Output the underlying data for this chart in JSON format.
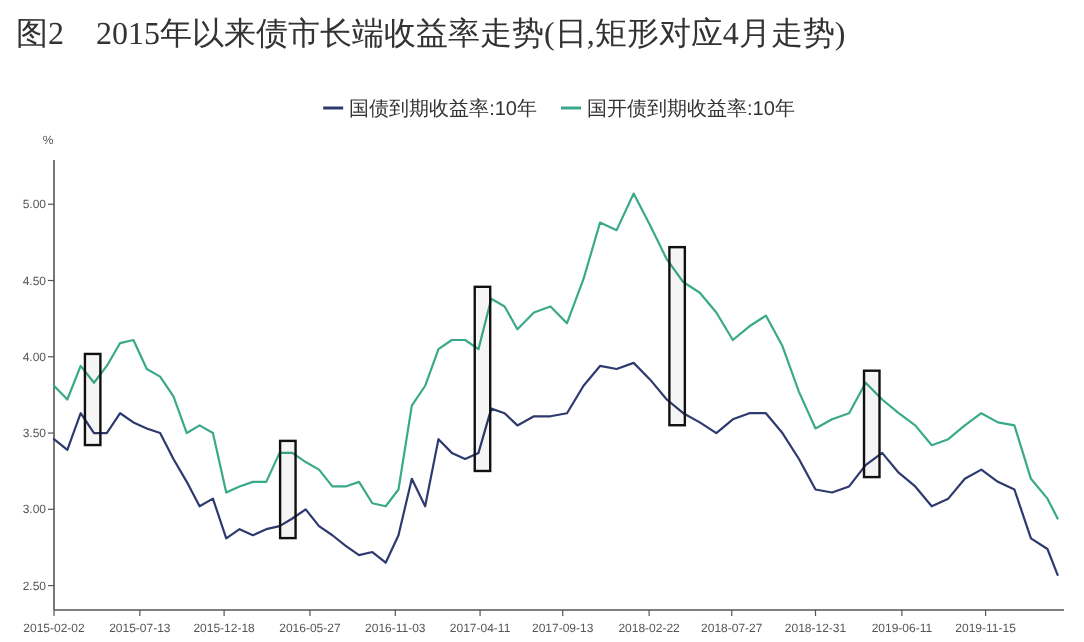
{
  "chart_data": {
    "type": "line",
    "title": "图2　2015年以来债市长端收益率走势(日,矩形对应4月走势)",
    "ylabel": "%",
    "x": [
      "2015-02-02",
      "2015-02-27",
      "2015-03-24",
      "2015-04-18",
      "2015-05-12",
      "2015-06-06",
      "2015-07-01",
      "2015-07-26",
      "2015-08-20",
      "2015-09-14",
      "2015-10-09",
      "2015-11-02",
      "2015-11-27",
      "2015-12-22",
      "2016-01-16",
      "2016-02-10",
      "2016-03-06",
      "2016-03-31",
      "2016-04-24",
      "2016-05-19",
      "2016-06-13",
      "2016-07-08",
      "2016-08-02",
      "2016-08-27",
      "2016-09-21",
      "2016-10-16",
      "2016-11-09",
      "2016-12-04",
      "2016-12-29",
      "2017-01-23",
      "2017-02-17",
      "2017-03-14",
      "2017-04-08",
      "2017-05-02",
      "2017-05-27",
      "2017-06-20",
      "2017-07-21",
      "2017-08-21",
      "2017-09-21",
      "2017-10-22",
      "2017-11-22",
      "2017-12-23",
      "2018-01-24",
      "2018-02-24",
      "2018-03-27",
      "2018-04-27",
      "2018-05-28",
      "2018-06-28",
      "2018-07-29",
      "2018-08-29",
      "2018-09-29",
      "2018-10-30",
      "2018-11-30",
      "2018-12-31",
      "2019-01-31",
      "2019-03-04",
      "2019-04-04",
      "2019-05-05",
      "2019-06-05",
      "2019-07-06",
      "2019-08-06",
      "2019-09-06",
      "2019-10-07",
      "2019-11-07",
      "2019-12-08",
      "2020-01-08",
      "2020-02-08",
      "2020-03-10",
      "2020-03-29"
    ],
    "series": [
      {
        "name": "国债到期收益率:10年",
        "color": "#2e3a6e",
        "values": [
          3.46,
          3.39,
          3.63,
          3.5,
          3.5,
          3.63,
          3.57,
          3.53,
          3.5,
          3.33,
          3.18,
          3.02,
          3.07,
          2.81,
          2.87,
          2.83,
          2.87,
          2.89,
          2.94,
          3.0,
          2.89,
          2.83,
          2.76,
          2.7,
          2.72,
          2.65,
          2.83,
          3.2,
          3.02,
          3.46,
          3.37,
          3.33,
          3.37,
          3.66,
          3.63,
          3.55,
          3.61,
          3.61,
          3.63,
          3.81,
          3.94,
          3.92,
          3.96,
          3.85,
          3.72,
          3.63,
          3.57,
          3.5,
          3.59,
          3.63,
          3.63,
          3.5,
          3.33,
          3.13,
          3.11,
          3.15,
          3.29,
          3.37,
          3.24,
          3.15,
          3.02,
          3.07,
          3.2,
          3.26,
          3.18,
          3.13,
          2.81,
          2.74,
          2.57
        ]
      },
      {
        "name": "国开债到期收益率:10年",
        "color": "#3aa98a",
        "values": [
          3.81,
          3.72,
          3.94,
          3.83,
          3.94,
          4.09,
          4.11,
          3.92,
          3.87,
          3.74,
          3.5,
          3.55,
          3.5,
          3.11,
          3.15,
          3.18,
          3.18,
          3.37,
          3.37,
          3.31,
          3.26,
          3.15,
          3.15,
          3.18,
          3.04,
          3.02,
          3.13,
          3.68,
          3.81,
          4.05,
          4.11,
          4.11,
          4.05,
          4.38,
          4.33,
          4.18,
          4.29,
          4.33,
          4.22,
          4.51,
          4.88,
          4.83,
          5.07,
          4.86,
          4.64,
          4.49,
          4.42,
          4.29,
          4.11,
          4.2,
          4.27,
          4.07,
          3.77,
          3.53,
          3.59,
          3.63,
          3.83,
          3.72,
          3.63,
          3.55,
          3.42,
          3.46,
          3.55,
          3.63,
          3.57,
          3.55,
          3.2,
          3.07,
          2.94
        ]
      }
    ],
    "xlim": [
      "2015-02-02",
      "2020-04-10"
    ],
    "xticks": [
      "2015-02-02",
      "2015-07-13",
      "2015-12-18",
      "2016-05-27",
      "2016-11-03",
      "2017-04-11",
      "2017-09-13",
      "2018-02-22",
      "2018-07-27",
      "2018-12-31",
      "2019-06-11",
      "2019-11-15"
    ],
    "ylim": [
      2.34,
      5.29
    ],
    "yticks": [
      {
        "value": 2.5,
        "label": "2.50"
      },
      {
        "value": 3,
        "label": "3.00"
      },
      {
        "value": 3.5,
        "label": "3.50"
      },
      {
        "value": 4,
        "label": "4.00"
      },
      {
        "value": 4.5,
        "label": "4.50"
      },
      {
        "value": 5,
        "label": "5.00"
      }
    ],
    "bands": [
      {
        "axis": "x",
        "from": "2015-04-01",
        "to": "2015-04-30"
      },
      {
        "axis": "x",
        "from": "2016-04-01",
        "to": "2016-04-30"
      },
      {
        "axis": "x",
        "from": "2017-04-01",
        "to": "2017-04-30"
      },
      {
        "axis": "x",
        "from": "2018-04-01",
        "to": "2018-04-30"
      },
      {
        "axis": "x",
        "from": "2019-04-01",
        "to": "2019-04-30"
      }
    ],
    "grid": false,
    "legend": "top",
    "marker": "none",
    "line_style": "solid"
  }
}
